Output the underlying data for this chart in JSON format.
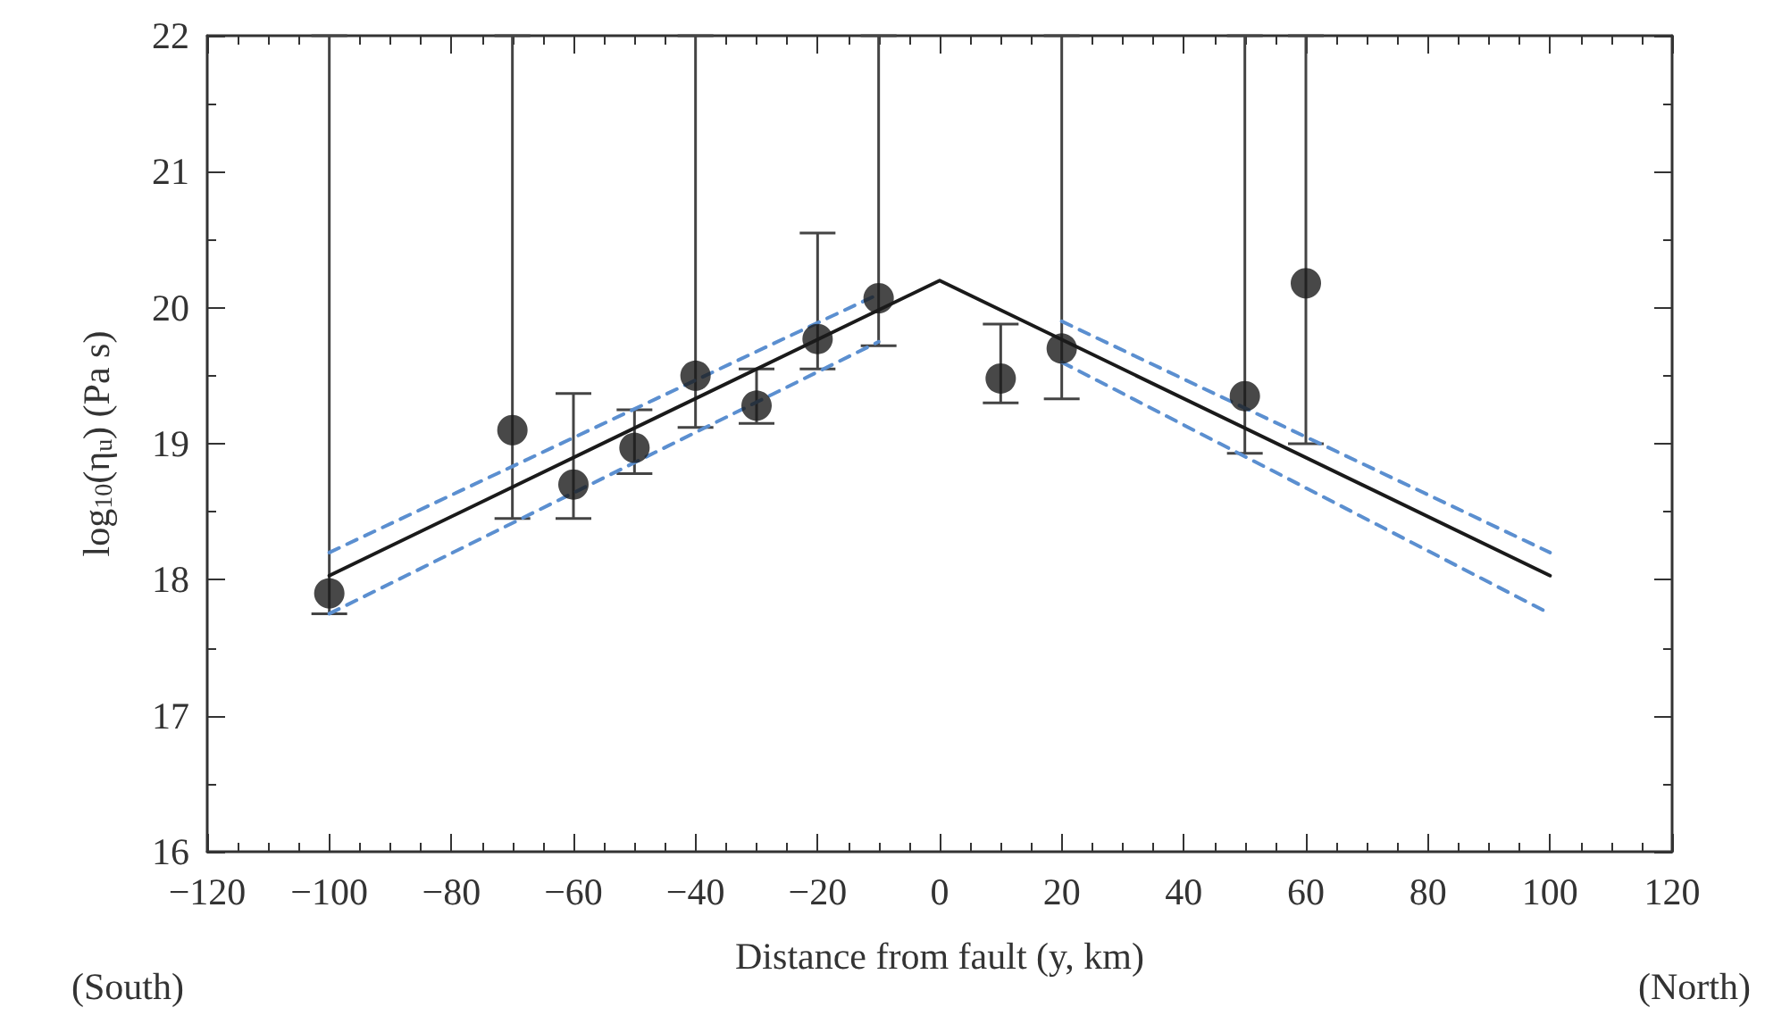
{
  "chart_data": {
    "type": "scatter",
    "xlabel": "Distance from fault (y, km)",
    "ylabel": "log$_{10}$(η$_{u}$) (Pa s)",
    "annotations": [
      "(South)",
      "(North)"
    ],
    "xlim": [
      -120,
      120
    ],
    "xticks": [
      -120,
      -100,
      -80,
      -60,
      -40,
      -20,
      0,
      20,
      40,
      60,
      80,
      100,
      120
    ],
    "ylim": [
      16,
      22
    ],
    "yticks": [
      16,
      17,
      18,
      19,
      20,
      21,
      22
    ],
    "series": [
      {
        "color": "#1a1a1a",
        "marker": "circle",
        "x": [
          -100,
          -70,
          -60,
          -50,
          -40,
          -30,
          -20,
          -10,
          10,
          20,
          50,
          60
        ],
        "values": [
          17.9,
          19.1,
          18.7,
          18.97,
          19.5,
          19.28,
          19.77,
          20.07,
          19.48,
          19.7,
          19.35,
          20.18
        ],
        "errors": [
          [
            17.75,
            22
          ],
          [
            18.45,
            22
          ],
          [
            18.45,
            19.37
          ],
          [
            18.78,
            19.25
          ],
          [
            19.12,
            22
          ],
          [
            19.15,
            19.55
          ],
          [
            19.55,
            20.55
          ],
          [
            19.72,
            22
          ],
          [
            19.3,
            19.88
          ],
          [
            19.33,
            22
          ],
          [
            18.93,
            22
          ],
          [
            19.0,
            22
          ]
        ]
      },
      {
        "type": "line",
        "color": "#1a1a1a",
        "marker": "none",
        "line_style": "solid",
        "x": [
          -100,
          0,
          100
        ],
        "values": [
          18.03,
          20.2,
          18.03
        ]
      },
      {
        "type": "line",
        "color": "#5b8fd0",
        "marker": "none",
        "line_style": "dashed",
        "x": [
          -100,
          -10,
          5,
          20,
          100
        ],
        "values": [
          18.2,
          20.1,
          null,
          19.9,
          18.2
        ]
      },
      {
        "type": "line",
        "color": "#5b8fd0",
        "marker": "none",
        "line_style": "dashed",
        "x": [
          -100,
          -10,
          5,
          20,
          100
        ],
        "values": [
          17.75,
          19.75,
          null,
          19.6,
          17.75
        ]
      }
    ]
  }
}
